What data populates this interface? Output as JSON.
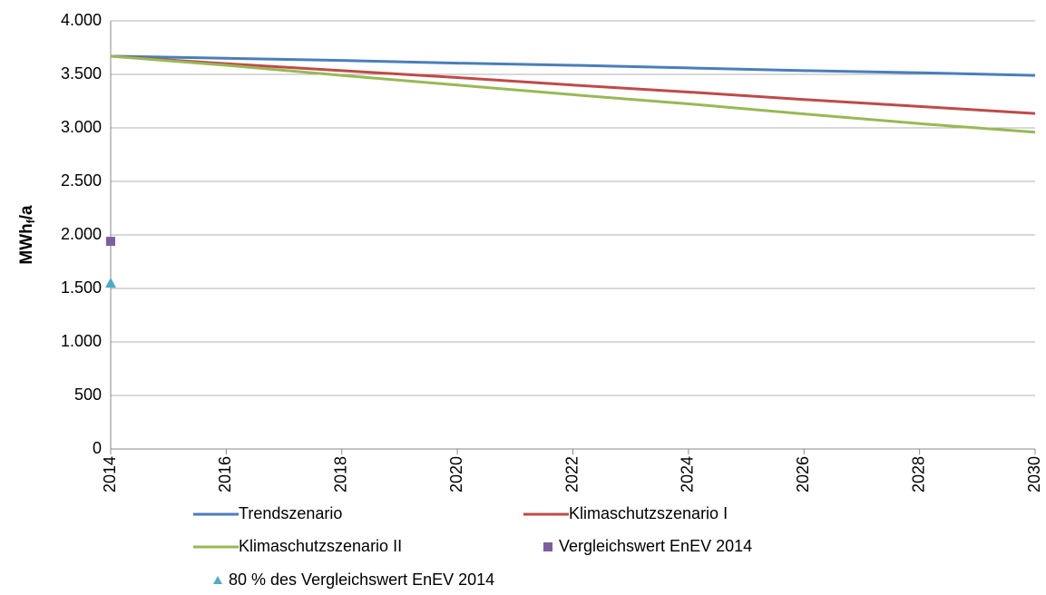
{
  "chart_data": {
    "type": "line",
    "ylabel": [
      "MWh",
      "f",
      "/a"
    ],
    "xlim": [
      2014,
      2030
    ],
    "xticks": [
      2014,
      2016,
      2018,
      2020,
      2022,
      2024,
      2026,
      2028,
      2030
    ],
    "ylim": [
      0,
      4000
    ],
    "yticks": [
      0,
      500,
      {
        "value": 1000,
        "label": "1.000"
      },
      {
        "value": 1500,
        "label": "1.500"
      },
      {
        "value": 2000,
        "label": "2.000"
      },
      {
        "value": 2500,
        "label": "2.500"
      },
      {
        "value": 3000,
        "label": "3.000"
      },
      {
        "value": 3500,
        "label": "3.500"
      },
      {
        "value": 4000,
        "label": "4.000"
      }
    ],
    "grid": true,
    "legend": "bottom",
    "series": [
      {
        "name": "Trendszenario",
        "color": "#4a7ebb",
        "x": [
          2014,
          2016,
          2018,
          2020,
          2022,
          2024,
          2026,
          2028,
          2030
        ],
        "values": [
          3670,
          3650,
          3630,
          3605,
          3585,
          3560,
          3535,
          3515,
          3490
        ]
      },
      {
        "name": "Klimaschutzszenario I",
        "color": "#be4b48",
        "x": [
          2014,
          2016,
          2018,
          2020,
          2022,
          2024,
          2026,
          2028,
          2030
        ],
        "values": [
          3670,
          3600,
          3535,
          3470,
          3400,
          3335,
          3265,
          3200,
          3135
        ]
      },
      {
        "name": "Klimaschutzszenario II",
        "color": "#98b954",
        "x": [
          2014,
          2016,
          2018,
          2020,
          2022,
          2024,
          2026,
          2028,
          2030
        ],
        "values": [
          3670,
          3585,
          3490,
          3400,
          3310,
          3225,
          3130,
          3040,
          2960
        ]
      },
      {
        "name": "Vergleichswert EnEV 2014",
        "color": "#7d5fa0",
        "marker": "square",
        "x": [
          2014
        ],
        "values": [
          1940
        ]
      },
      {
        "name": "80 % des Vergleichswert EnEV 2014",
        "color": "#4bacc6",
        "marker": "triangle",
        "x": [
          2014
        ],
        "values": [
          1550
        ]
      }
    ]
  }
}
